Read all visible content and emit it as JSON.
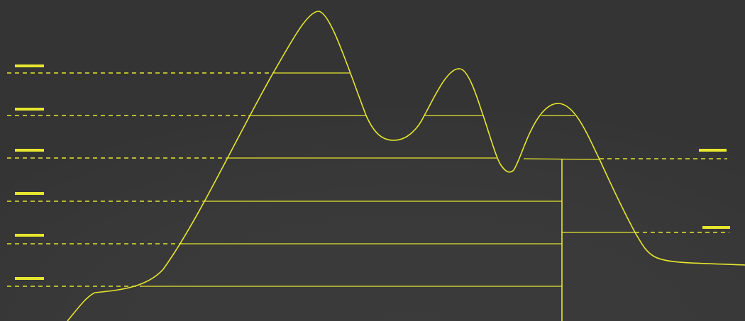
{
  "colors": {
    "background": "#393939",
    "accent": "#e6e62e"
  },
  "diagram": {
    "kind": "terrain-profile-contour-levels",
    "left_level_markers": 6,
    "right_level_markers": 2,
    "has_vertical_divider": true
  }
}
